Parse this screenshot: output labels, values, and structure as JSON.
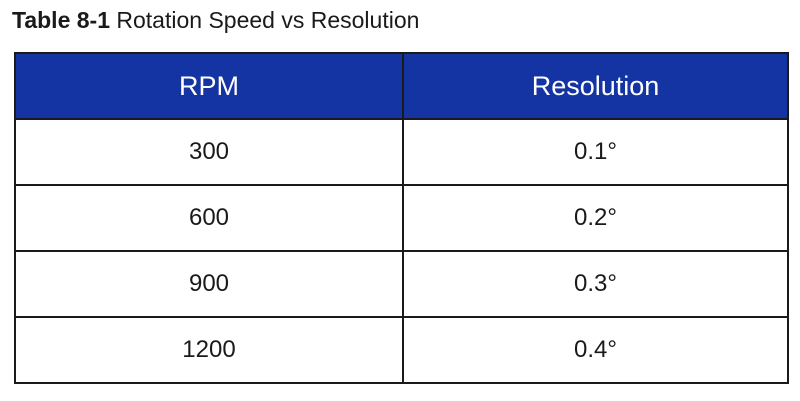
{
  "caption": {
    "label": "Table 8-1",
    "text": "Rotation Speed vs Resolution"
  },
  "colors": {
    "header_background": "#1434a4",
    "header_text": "#ffffff",
    "border": "#1a1a1a"
  },
  "table": {
    "headers": [
      "RPM",
      "Resolution"
    ],
    "rows": [
      [
        "300",
        "0.1°"
      ],
      [
        "600",
        "0.2°"
      ],
      [
        "900",
        "0.3°"
      ],
      [
        "1200",
        "0.4°"
      ]
    ]
  }
}
